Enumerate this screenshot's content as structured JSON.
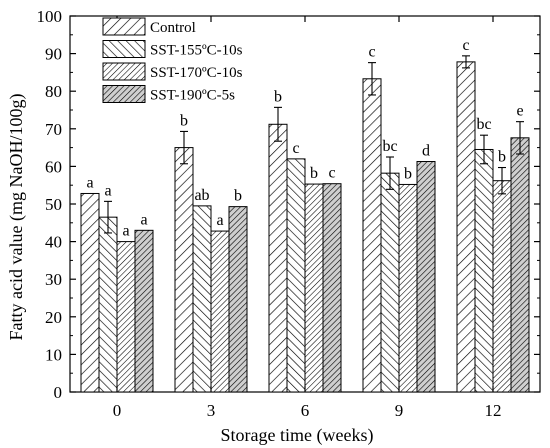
{
  "chart_data": {
    "type": "bar",
    "title": "",
    "xlabel": "Storage time (weeks)",
    "ylabel": "Fatty acid value (mg NaOH/100g)",
    "ylim": [
      0,
      100
    ],
    "y_ticks": [
      "0",
      "10",
      "20",
      "30",
      "40",
      "50",
      "60",
      "70",
      "80",
      "90",
      "100"
    ],
    "categories": [
      "0",
      "3",
      "6",
      "9",
      "12"
    ],
    "legend_position": "top-left",
    "grid": false,
    "error_bars": true,
    "series": [
      {
        "name": "Control",
        "pattern": "forward-diagonal",
        "values": [
          52.8,
          65.0,
          71.2,
          83.3,
          87.8
        ],
        "errors": [
          0.0,
          4.3,
          4.5,
          4.3,
          1.6
        ],
        "labels": [
          "a",
          "b",
          "b",
          "c",
          "c"
        ]
      },
      {
        "name": "SST-155ºC-10s",
        "pattern": "back-diagonal",
        "values": [
          46.5,
          49.5,
          62.0,
          58.2,
          64.5
        ],
        "errors": [
          4.2,
          0.0,
          0.0,
          4.3,
          3.8
        ],
        "labels": [
          "a",
          "ab",
          "c",
          "bc",
          "bc"
        ]
      },
      {
        "name": "SST-170ºC-10s",
        "pattern": "forward-diagonal-dense",
        "values": [
          40.0,
          42.8,
          55.3,
          55.2,
          56.2
        ],
        "errors": [
          0.0,
          0.0,
          0.0,
          0.0,
          3.5
        ],
        "labels": [
          "a",
          "a",
          "b",
          "b",
          "b"
        ]
      },
      {
        "name": "SST-190ºC-5s",
        "pattern": "forward-diagonal-shaded",
        "values": [
          43.0,
          49.3,
          55.4,
          61.3,
          67.6
        ],
        "errors": [
          0.0,
          0.0,
          0.0,
          0.0,
          4.3
        ],
        "labels": [
          "a",
          "b",
          "c",
          "d",
          "e"
        ]
      }
    ]
  },
  "colors": {
    "axis": "#000000",
    "bar_fill": "#ffffff",
    "shaded_fill": "#cfcfcf"
  }
}
